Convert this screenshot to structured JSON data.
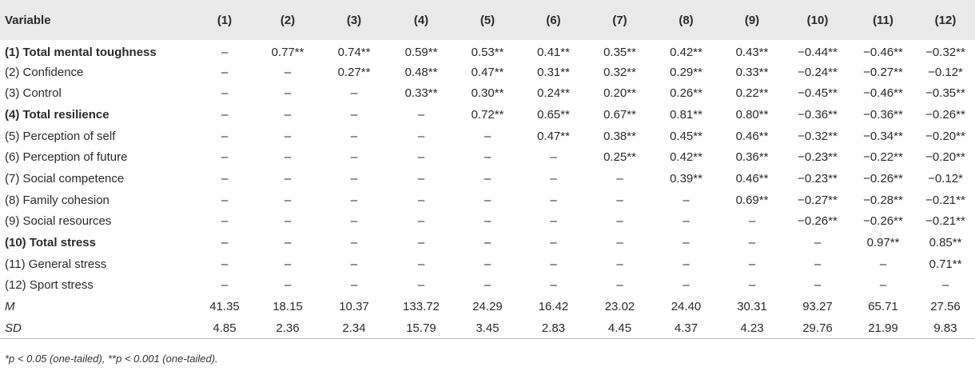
{
  "header": [
    "Variable",
    "(1)",
    "(2)",
    "(3)",
    "(4)",
    "(5)",
    "(6)",
    "(7)",
    "(8)",
    "(9)",
    "(10)",
    "(11)",
    "(12)"
  ],
  "rows": [
    {
      "label": "(1) Total mental toughness",
      "bold": true,
      "italic": false,
      "cells": [
        "–",
        "0.77**",
        "0.74**",
        "0.59**",
        "0.53**",
        "0.41**",
        "0.35**",
        "0.42**",
        "0.43**",
        "−0.44**",
        "−0.46**",
        "−0.32**"
      ]
    },
    {
      "label": "(2) Confidence",
      "bold": false,
      "italic": false,
      "cells": [
        "–",
        "–",
        "0.27**",
        "0.48**",
        "0.47**",
        "0.31**",
        "0.32**",
        "0.29**",
        "0.33**",
        "−0.24**",
        "−0.27**",
        "−0.12*"
      ]
    },
    {
      "label": "(3) Control",
      "bold": false,
      "italic": false,
      "cells": [
        "–",
        "–",
        "–",
        "0.33**",
        "0.30**",
        "0.24**",
        "0.20**",
        "0.26**",
        "0.22**",
        "−0.45**",
        "−0.46**",
        "−0.35**"
      ]
    },
    {
      "label": "(4) Total resilience",
      "bold": true,
      "italic": false,
      "cells": [
        "–",
        "–",
        "–",
        "–",
        "0.72**",
        "0.65**",
        "0.67**",
        "0.81**",
        "0.80**",
        "−0.36**",
        "−0.36**",
        "−0.26**"
      ]
    },
    {
      "label": "(5) Perception of self",
      "bold": false,
      "italic": false,
      "cells": [
        "–",
        "–",
        "–",
        "–",
        "–",
        "0.47**",
        "0.38**",
        "0.45**",
        "0.46**",
        "−0.32**",
        "−0.34**",
        "−0.20**"
      ]
    },
    {
      "label": "(6) Perception of future",
      "bold": false,
      "italic": false,
      "cells": [
        "–",
        "–",
        "–",
        "–",
        "–",
        "–",
        "0.25**",
        "0.42**",
        "0.36**",
        "−0.23**",
        "−0.22**",
        "−0.20**"
      ]
    },
    {
      "label": "(7) Social competence",
      "bold": false,
      "italic": false,
      "cells": [
        "–",
        "–",
        "–",
        "–",
        "–",
        "–",
        "–",
        "0.39**",
        "0.46**",
        "−0.23**",
        "−0.26**",
        "−0.12*"
      ]
    },
    {
      "label": "(8) Family cohesion",
      "bold": false,
      "italic": false,
      "cells": [
        "–",
        "–",
        "–",
        "–",
        "–",
        "–",
        "–",
        "–",
        "0.69**",
        "−0.27**",
        "−0.28**",
        "−0.21**"
      ]
    },
    {
      "label": "(9) Social resources",
      "bold": false,
      "italic": false,
      "cells": [
        "–",
        "–",
        "–",
        "–",
        "–",
        "–",
        "–",
        "–",
        "–",
        "−0.26**",
        "−0.26**",
        "−0.21**"
      ]
    },
    {
      "label": "(10) Total stress",
      "bold": true,
      "italic": false,
      "cells": [
        "–",
        "–",
        "–",
        "–",
        "–",
        "–",
        "–",
        "–",
        "–",
        "–",
        "0.97**",
        "0.85**"
      ]
    },
    {
      "label": "(11) General stress",
      "bold": false,
      "italic": false,
      "cells": [
        "–",
        "–",
        "–",
        "–",
        "–",
        "–",
        "–",
        "–",
        "–",
        "–",
        "–",
        "0.71**"
      ]
    },
    {
      "label": "(12) Sport stress",
      "bold": false,
      "italic": false,
      "cells": [
        "–",
        "–",
        "–",
        "–",
        "–",
        "–",
        "–",
        "–",
        "–",
        "–",
        "–",
        "–"
      ]
    },
    {
      "label": "M",
      "bold": false,
      "italic": true,
      "cells": [
        "41.35",
        "18.15",
        "10.37",
        "133.72",
        "24.29",
        "16.42",
        "23.02",
        "24.40",
        "30.31",
        "93.27",
        "65.71",
        "27.56"
      ]
    },
    {
      "label": "SD",
      "bold": false,
      "italic": true,
      "cells": [
        "4.85",
        "2.36",
        "2.34",
        "15.79",
        "3.45",
        "2.83",
        "4.45",
        "4.37",
        "4.23",
        "29.76",
        "21.99",
        "9.83"
      ]
    }
  ],
  "footnote": "*p < 0.05 (one-tailed), **p < 0.001 (one-tailed)."
}
